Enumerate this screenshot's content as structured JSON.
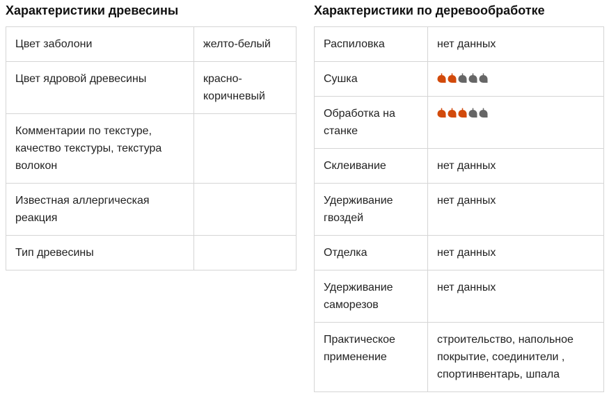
{
  "wood": {
    "title": "Характеристики древесины",
    "rows": [
      {
        "label": "Цвет заболони",
        "value": "желто-белый"
      },
      {
        "label": "Цвет ядровой древесины",
        "value": "красно-коричневый"
      },
      {
        "label": "Комментарии по текстуре, качество текстуры, текстура волокон",
        "value": ""
      },
      {
        "label": "Известная аллергическая реакция",
        "value": ""
      },
      {
        "label": "Тип древесины",
        "value": ""
      }
    ]
  },
  "work": {
    "title": "Характеристики по деревообработке",
    "rows": [
      {
        "label": "Распиловка",
        "value": "нет данных"
      },
      {
        "label": "Сушка",
        "rating": 2,
        "max": 5
      },
      {
        "label": "Обработка на станке",
        "rating": 3,
        "max": 5
      },
      {
        "label": "Склеивание",
        "value": "нет данных"
      },
      {
        "label": "Удерживание гвоздей",
        "value": "нет данных"
      },
      {
        "label": "Отделка",
        "value": "нет данных"
      },
      {
        "label": "Удерживание саморезов",
        "value": "нет данных"
      },
      {
        "label": "Практическое применение",
        "value": "строительство, напольное покрытие, соединители , спортинвентарь, шпала"
      }
    ]
  },
  "colors": {
    "leaf_on": "#d24a0b",
    "leaf_off": "#666666"
  }
}
